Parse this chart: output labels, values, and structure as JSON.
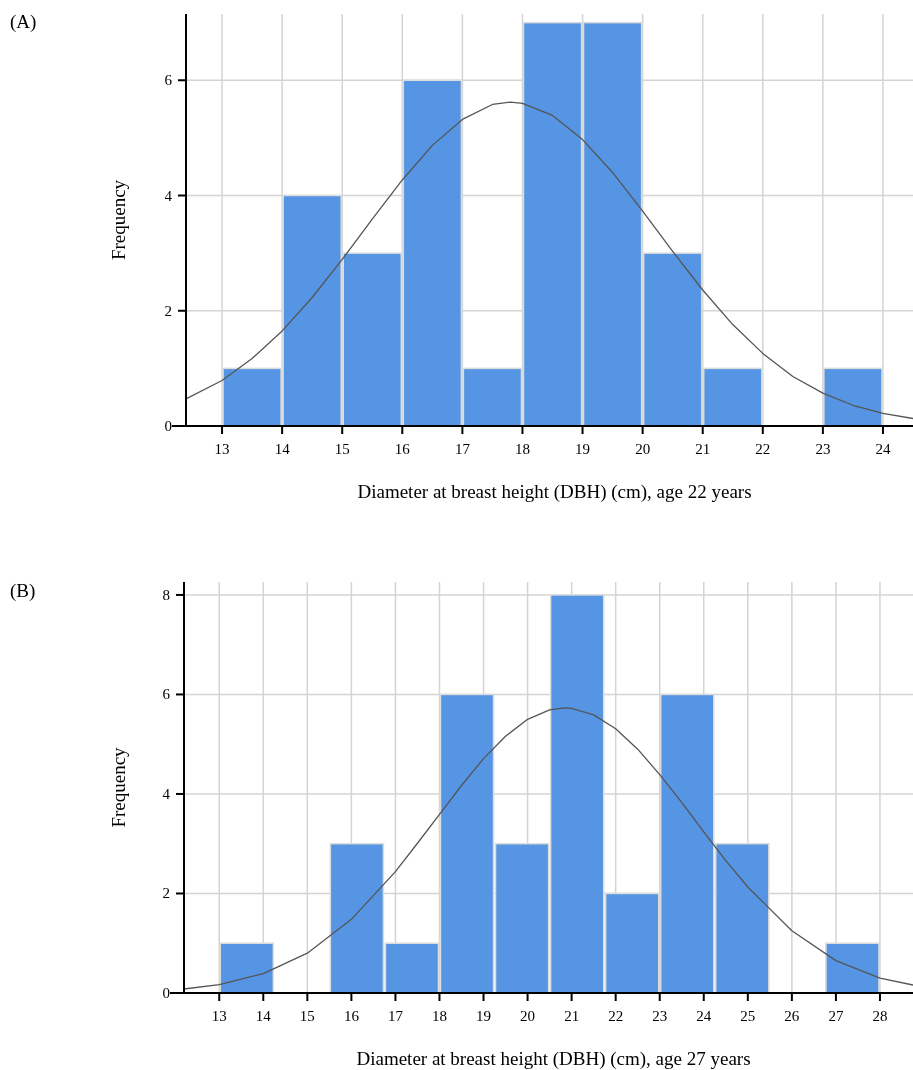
{
  "chart_data": [
    {
      "type": "histogram",
      "annotations": [
        "(A)"
      ],
      "xlabel": "Diameter at breast height (DBH) (cm), age 22 years",
      "ylabel": "Frequency",
      "xlim": [
        12.4,
        24.5
      ],
      "xticks": [
        13,
        14,
        15,
        16,
        17,
        18,
        19,
        20,
        21,
        22,
        23,
        24
      ],
      "ylim": [
        0,
        7.15
      ],
      "yticks": [
        0,
        2,
        4,
        6
      ],
      "grid": true,
      "series": [
        {
          "color": "#5595e3",
          "bins": [
            13,
            14,
            15,
            16,
            17,
            18,
            19,
            20,
            21,
            22,
            23,
            24
          ],
          "values": [
            1,
            4,
            3,
            6,
            1,
            7,
            7,
            3,
            1,
            0,
            1
          ]
        },
        {
          "type": "line",
          "color": "#555555",
          "x": [
            12.4,
            13,
            13.5,
            14,
            14.5,
            15,
            15.5,
            16,
            16.5,
            17,
            17.5,
            17.8,
            18,
            18.5,
            19,
            19.5,
            20,
            20.5,
            21,
            21.5,
            22,
            22.5,
            23,
            23.5,
            24,
            24.5
          ],
          "values": [
            0.47,
            0.79,
            1.17,
            1.65,
            2.23,
            2.89,
            3.59,
            4.27,
            4.87,
            5.32,
            5.58,
            5.62,
            5.6,
            5.39,
            4.97,
            4.4,
            3.73,
            3.03,
            2.36,
            1.76,
            1.26,
            0.86,
            0.57,
            0.36,
            0.22,
            0.13
          ]
        }
      ]
    },
    {
      "type": "histogram",
      "annotations": [
        "(B)"
      ],
      "xlabel": "Diameter at breast height (DBH) (cm), age 27 years",
      "ylabel": "Frequency",
      "xlim": [
        12.2,
        28.75
      ],
      "xticks": [
        13,
        14,
        15,
        16,
        17,
        18,
        19,
        20,
        21,
        22,
        23,
        24,
        25,
        26,
        27,
        28
      ],
      "ylim": [
        0,
        8.26
      ],
      "yticks": [
        0,
        2,
        4,
        6,
        8
      ],
      "grid": true,
      "series": [
        {
          "color": "#5595e3",
          "bins": [
            13,
            14.25,
            15.5,
            16.75,
            18,
            19.25,
            20.5,
            21.75,
            23,
            24.25,
            25.5,
            26.75,
            28
          ],
          "values": [
            1,
            0,
            3,
            1,
            6,
            3,
            8,
            2,
            6,
            3,
            0,
            1
          ]
        },
        {
          "type": "line",
          "color": "#555555",
          "x": [
            12.2,
            13,
            14,
            15,
            16,
            17,
            17.5,
            18,
            18.5,
            19,
            19.5,
            20,
            20.5,
            20.85,
            21,
            21.5,
            22,
            22.5,
            23,
            23.5,
            24,
            24.5,
            25,
            26,
            27,
            28,
            28.75
          ],
          "values": [
            0.08,
            0.17,
            0.39,
            0.8,
            1.48,
            2.44,
            3.01,
            3.59,
            4.17,
            4.71,
            5.16,
            5.5,
            5.69,
            5.73,
            5.72,
            5.59,
            5.31,
            4.9,
            4.39,
            3.83,
            3.24,
            2.66,
            2.13,
            1.25,
            0.65,
            0.3,
            0.16
          ]
        }
      ]
    }
  ]
}
